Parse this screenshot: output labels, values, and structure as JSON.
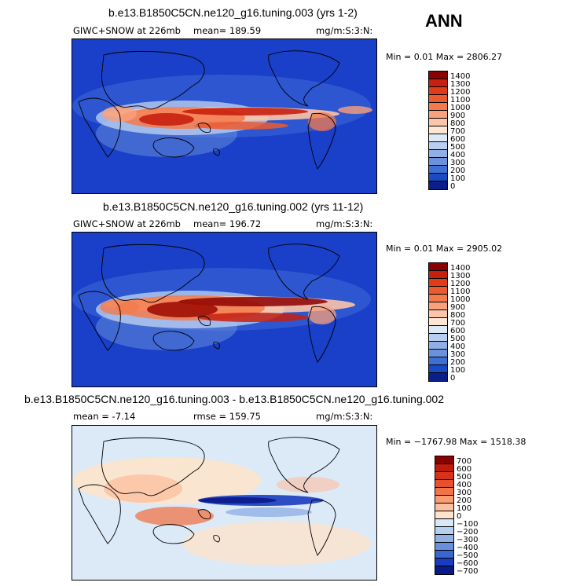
{
  "header": {
    "season": "ANN"
  },
  "panels": [
    {
      "title": "b.e13.B1850C5CN.ne120_g16.tuning.003 (yrs 1-2)",
      "variable": "GIWC+SNOW at 226mb",
      "mean": "mean= 189.59",
      "units": "mg/m:S:3:N:",
      "minmax": "Min =   0.01 Max = 2806.27",
      "colorbar": {
        "labels": [
          "1400",
          "1300",
          "1200",
          "1100",
          "1000",
          "900",
          "800",
          "700",
          "600",
          "500",
          "400",
          "300",
          "200",
          "100",
          "0"
        ],
        "colors": [
          "#8b0000",
          "#c8200e",
          "#e03c1a",
          "#ec5a30",
          "#f47a4c",
          "#f9a07c",
          "#fcc4a8",
          "#fde6d4",
          "#dce9f7",
          "#b8cdef",
          "#90afe6",
          "#6a91dc",
          "#3f6fd3",
          "#1a4bc6",
          "#0a1f8a"
        ]
      }
    },
    {
      "title": "b.e13.B1850C5CN.ne120_g16.tuning.002 (yrs 11-12)",
      "variable": "GIWC+SNOW at 226mb",
      "mean": "mean= 196.72",
      "units": "mg/m:S:3:N:",
      "minmax": "Min =   0.01 Max = 2905.02",
      "colorbar": {
        "labels": [
          "1400",
          "1300",
          "1200",
          "1100",
          "1000",
          "900",
          "800",
          "700",
          "600",
          "500",
          "400",
          "300",
          "200",
          "100",
          "0"
        ],
        "colors": [
          "#8b0000",
          "#c8200e",
          "#e03c1a",
          "#ec5a30",
          "#f47a4c",
          "#f9a07c",
          "#fcc4a8",
          "#fde6d4",
          "#dce9f7",
          "#b8cdef",
          "#90afe6",
          "#6a91dc",
          "#3f6fd3",
          "#1a4bc6",
          "#0a1f8a"
        ]
      }
    },
    {
      "title": "b.e13.B1850C5CN.ne120_g16.tuning.003 - b.e13.B1850C5CN.ne120_g16.tuning.002",
      "mean": "mean =   -7.14",
      "rmse": "rmse =  159.75",
      "units": "mg/m:S:3:N:",
      "minmax": "Min = −1767.98 Max = 1518.38",
      "colorbar": {
        "labels": [
          "700",
          "600",
          "500",
          "400",
          "300",
          "200",
          "100",
          "0",
          "−100",
          "−200",
          "−300",
          "−400",
          "−500",
          "−600",
          "−700"
        ],
        "colors": [
          "#8b0000",
          "#bf1a0c",
          "#d8321a",
          "#e8502e",
          "#f27448",
          "#f89c74",
          "#fcc0a0",
          "#fde4cc",
          "#d8e8f8",
          "#b8d0f0",
          "#90b0e6",
          "#6890dc",
          "#3c66cf",
          "#1a3cbf",
          "#0a1a8a"
        ]
      }
    }
  ]
}
